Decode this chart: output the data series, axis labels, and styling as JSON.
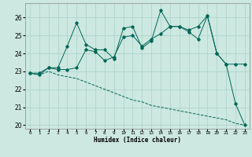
{
  "xlabel": "Humidex (Indice chaleur)",
  "xlim": [
    -0.5,
    23.5
  ],
  "ylim": [
    19.8,
    26.8
  ],
  "yticks": [
    20,
    21,
    22,
    23,
    24,
    25,
    26
  ],
  "xtick_labels": [
    "0",
    "1",
    "2",
    "3",
    "4",
    "5",
    "6",
    "7",
    "8",
    "9",
    "10",
    "11",
    "12",
    "13",
    "14",
    "15",
    "16",
    "17",
    "18",
    "19",
    "20",
    "21",
    "22",
    "23"
  ],
  "bg_color": "#cce8e0",
  "grid_color": "#b0d4cc",
  "line_color": "#006655",
  "line1_y": [
    22.9,
    22.9,
    23.2,
    23.2,
    24.4,
    25.7,
    24.5,
    24.2,
    24.2,
    23.7,
    25.4,
    25.5,
    24.3,
    24.7,
    26.4,
    25.5,
    25.5,
    25.2,
    24.8,
    26.1,
    24.0,
    23.4,
    21.2,
    20.0
  ],
  "line2_y": [
    22.9,
    22.8,
    23.2,
    23.1,
    23.1,
    23.2,
    24.2,
    24.1,
    23.6,
    23.8,
    24.9,
    25.0,
    24.4,
    24.8,
    25.1,
    25.5,
    25.5,
    25.3,
    25.5,
    26.1,
    24.0,
    23.4,
    23.4,
    23.4
  ],
  "line3_y": [
    22.9,
    22.8,
    23.0,
    22.8,
    22.7,
    22.6,
    22.4,
    22.2,
    22.0,
    21.8,
    21.6,
    21.4,
    21.3,
    21.1,
    21.0,
    20.9,
    20.8,
    20.7,
    20.6,
    20.5,
    20.4,
    20.3,
    20.1,
    20.0
  ],
  "fig_width": 3.2,
  "fig_height": 2.0,
  "dpi": 100
}
